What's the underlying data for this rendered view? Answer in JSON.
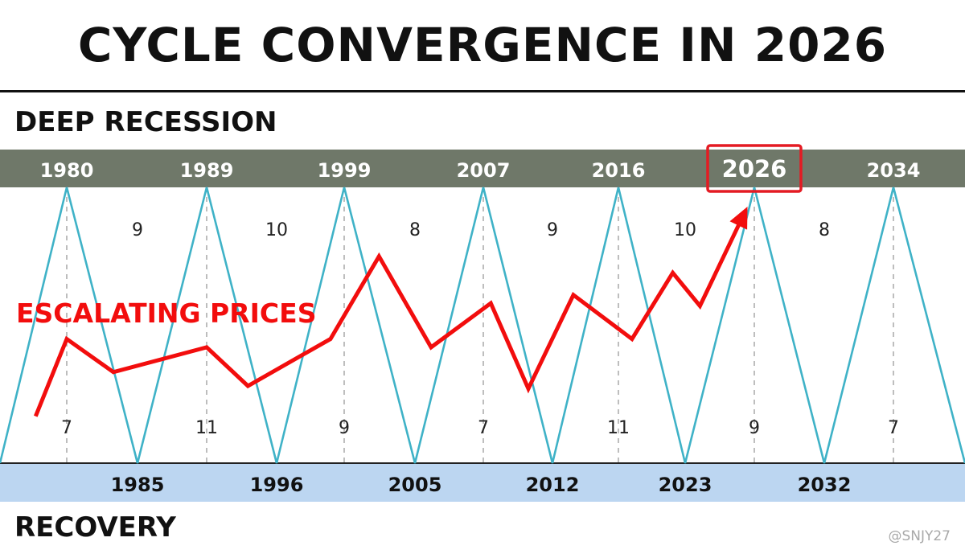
{
  "title": "CYCLE CONVERGENCE IN 2026",
  "watermark": "@SNJY27",
  "colors": {
    "peak_band": "#6f7869",
    "trough_band": "#bcd6f1",
    "cycle_line": "#3fb2c7",
    "price_line": "#f20d0d",
    "highlight": "#e41b23"
  },
  "chart_data": {
    "type": "line",
    "top_label": "DEEP RECESSION",
    "bottom_label": "RECOVERY",
    "peaks": [
      "1980",
      "1989",
      "1999",
      "2007",
      "2016",
      "2026",
      "2034"
    ],
    "highlighted_peak": "2026",
    "troughs": [
      "1985",
      "1996",
      "2005",
      "2012",
      "2023",
      "2032"
    ],
    "peak_to_peak_gaps": [
      "9",
      "10",
      "8",
      "9",
      "10",
      "8"
    ],
    "trough_gaps": [
      "7",
      "11",
      "9",
      "7",
      "11",
      "9",
      "7"
    ],
    "series": [
      {
        "name": "ESCALATING PRICES",
        "x": [
          1978,
          1980,
          1983,
          1989,
          1992,
          1998,
          2001,
          2004,
          2007.5,
          2010,
          2013,
          2017,
          2020,
          2022,
          2025.5
        ],
        "values": [
          0.17,
          0.45,
          0.33,
          0.42,
          0.28,
          0.45,
          0.75,
          0.42,
          0.58,
          0.27,
          0.61,
          0.45,
          0.69,
          0.57,
          0.93
        ]
      }
    ]
  }
}
